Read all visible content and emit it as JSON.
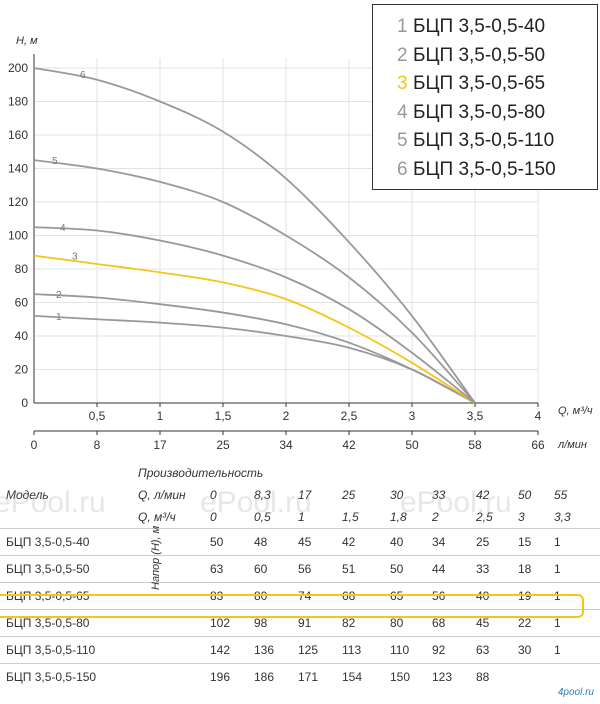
{
  "chart_data": {
    "type": "line",
    "ylabel": "H, м",
    "xlabel": "Q, м³/ч",
    "xlabel2": "л/мин",
    "ylim": [
      0,
      200
    ],
    "xlim": [
      0,
      4
    ],
    "yticks": [
      "0",
      "20",
      "40",
      "60",
      "80",
      "100",
      "120",
      "140",
      "160",
      "180",
      "200"
    ],
    "xticks": [
      "0,5",
      "1",
      "1,5",
      "2",
      "2,5",
      "3",
      "3,5",
      "4"
    ],
    "xticks2": [
      "0",
      "8",
      "17",
      "25",
      "34",
      "42",
      "50",
      "58",
      "66"
    ],
    "grid": true,
    "highlight_color": "#f5c518",
    "line_color": "#999999",
    "series": [
      {
        "name": "1",
        "points": [
          [
            0,
            52
          ],
          [
            0.5,
            50
          ],
          [
            1,
            48
          ],
          [
            1.5,
            45
          ],
          [
            2,
            40
          ],
          [
            2.5,
            33
          ],
          [
            3,
            20
          ],
          [
            3.5,
            0
          ]
        ]
      },
      {
        "name": "2",
        "points": [
          [
            0,
            65
          ],
          [
            0.5,
            63
          ],
          [
            1,
            59
          ],
          [
            1.5,
            54
          ],
          [
            2,
            47
          ],
          [
            2.5,
            36
          ],
          [
            3,
            20
          ],
          [
            3.5,
            0
          ]
        ]
      },
      {
        "name": "3",
        "points": [
          [
            0,
            88
          ],
          [
            0.5,
            83
          ],
          [
            1,
            78
          ],
          [
            1.5,
            72
          ],
          [
            2,
            62
          ],
          [
            2.5,
            45
          ],
          [
            3,
            24
          ],
          [
            3.5,
            0
          ]
        ]
      },
      {
        "name": "4",
        "points": [
          [
            0,
            105
          ],
          [
            0.5,
            103
          ],
          [
            1,
            97
          ],
          [
            1.5,
            88
          ],
          [
            2,
            75
          ],
          [
            2.5,
            56
          ],
          [
            3,
            30
          ],
          [
            3.5,
            0
          ]
        ]
      },
      {
        "name": "5",
        "points": [
          [
            0,
            145
          ],
          [
            0.5,
            140
          ],
          [
            1,
            132
          ],
          [
            1.5,
            120
          ],
          [
            2,
            100
          ],
          [
            2.5,
            75
          ],
          [
            3,
            42
          ],
          [
            3.5,
            0
          ]
        ]
      },
      {
        "name": "6",
        "points": [
          [
            0,
            200
          ],
          [
            0.5,
            193
          ],
          [
            1,
            180
          ],
          [
            1.5,
            162
          ],
          [
            2,
            134
          ],
          [
            2.5,
            96
          ],
          [
            3,
            52
          ],
          [
            3.5,
            0
          ]
        ]
      }
    ]
  },
  "legend": [
    {
      "num": "1",
      "label": "БЦП 3,5-0,5-40"
    },
    {
      "num": "2",
      "label": "БЦП 3,5-0,5-50"
    },
    {
      "num": "3",
      "label": "БЦП 3,5-0,5-65"
    },
    {
      "num": "4",
      "label": "БЦП 3,5-0,5-80"
    },
    {
      "num": "5",
      "label": "БЦП 3,5-0,5-110"
    },
    {
      "num": "6",
      "label": "БЦП 3,5-0,5-150"
    }
  ],
  "table": {
    "caption": "Производительность",
    "model_header": "Модель",
    "q_lmin_header": "Q, л/мин",
    "q_m3h_header": "Q, м³/ч",
    "head_label": "Напор (H), м",
    "q_lmin": [
      "0",
      "8,3",
      "17",
      "25",
      "30",
      "33",
      "42",
      "50",
      "55"
    ],
    "q_m3h": [
      "0",
      "0,5",
      "1",
      "1,5",
      "1,8",
      "2",
      "2,5",
      "3",
      "3,3"
    ],
    "rows": [
      {
        "model": "БЦП 3,5-0,5-40",
        "values": [
          "50",
          "48",
          "45",
          "42",
          "40",
          "34",
          "25",
          "15",
          "1"
        ]
      },
      {
        "model": "БЦП 3,5-0,5-50",
        "values": [
          "63",
          "60",
          "56",
          "51",
          "50",
          "44",
          "33",
          "18",
          "1"
        ]
      },
      {
        "model": "БЦП 3,5-0,5-65",
        "values": [
          "83",
          "80",
          "74",
          "68",
          "65",
          "56",
          "40",
          "19",
          "1"
        ]
      },
      {
        "model": "БЦП 3,5-0,5-80",
        "values": [
          "102",
          "98",
          "91",
          "82",
          "80",
          "68",
          "45",
          "22",
          "1"
        ]
      },
      {
        "model": "БЦП 3,5-0,5-110",
        "values": [
          "142",
          "136",
          "125",
          "113",
          "110",
          "92",
          "63",
          "30",
          "1"
        ]
      },
      {
        "model": "БЦП 3,5-0,5-150",
        "values": [
          "196",
          "186",
          "171",
          "154",
          "150",
          "123",
          "88",
          "",
          ""
        ]
      }
    ]
  },
  "watermark": "ePool.ru",
  "brand": "4pool.ru"
}
